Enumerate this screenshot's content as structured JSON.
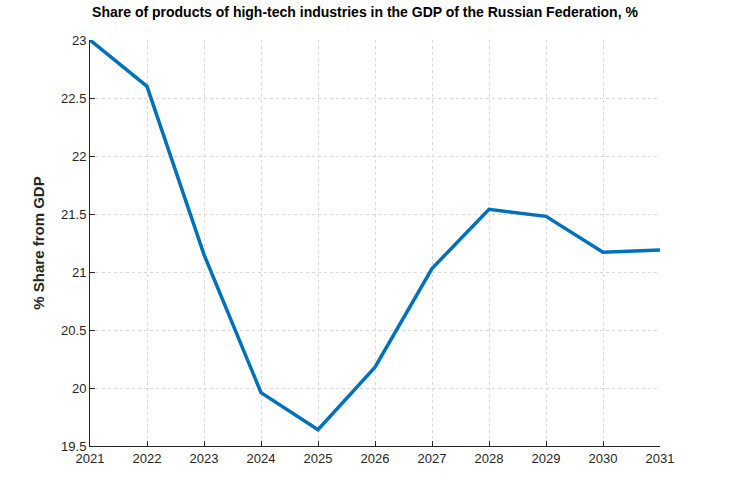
{
  "chart_data": {
    "type": "line",
    "title": "Share of products of high-tech industries in the GDP of the Russian Federation, %",
    "y_label": "% Share from GDP",
    "x": [
      2021,
      2022,
      2023,
      2024,
      2025,
      2026,
      2027,
      2028,
      2029,
      2030,
      2031
    ],
    "values": [
      23.0,
      22.6,
      21.15,
      19.96,
      19.64,
      20.18,
      21.03,
      21.54,
      21.48,
      21.17,
      21.19
    ],
    "color": "#0072bd",
    "xlim": [
      2021,
      2031
    ],
    "xticks": [
      2021,
      2022,
      2023,
      2024,
      2025,
      2026,
      2027,
      2028,
      2029,
      2030,
      2031
    ],
    "ylim": [
      19.5,
      23
    ],
    "yticks": [
      19.5,
      20,
      20.5,
      21,
      21.5,
      22,
      22.5,
      23
    ],
    "grid": true
  }
}
